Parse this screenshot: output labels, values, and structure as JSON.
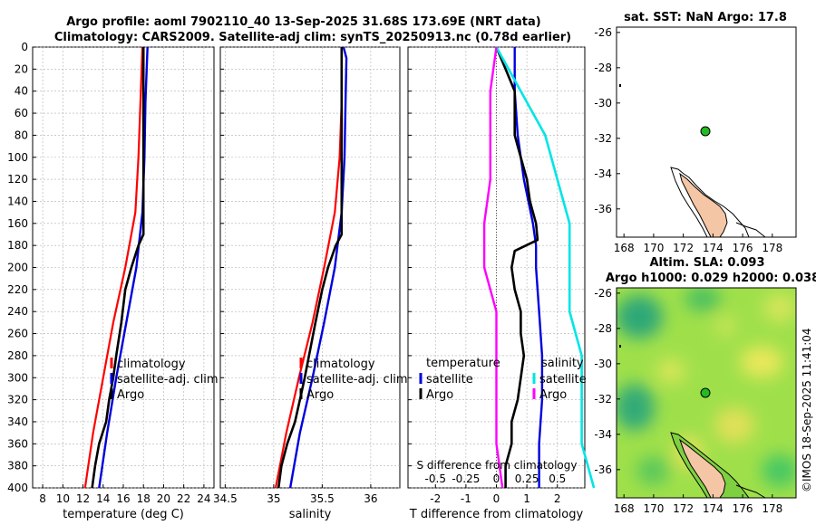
{
  "figure": {
    "title_line1": "Argo profile: aoml 7902110_40 13-Sep-2025 31.68S 173.69E (NRT data)",
    "title_line2": "Climatology: CARS2009. Satellite-adj clim: synTS_20250913.nc (0.78d earlier)",
    "stamp": "©IMOS 18-Sep-2025 11:41:04"
  },
  "colors": {
    "climatology": "#ff0000",
    "satellite": "#0000dd",
    "argo": "#000000",
    "s_satellite": "#00e5e5",
    "s_argo": "#ff00ff",
    "land": "#f5c6a5",
    "float_marker": "#22bb22"
  },
  "chart_data": [
    {
      "id": "temperature",
      "type": "line",
      "xlabel": "temperature (deg C)",
      "ylabel": "",
      "xlim": [
        7,
        25
      ],
      "ylim": [
        400,
        0
      ],
      "xticks": [
        8,
        10,
        12,
        14,
        16,
        18,
        20,
        22,
        24
      ],
      "yticks": [
        0,
        20,
        40,
        60,
        80,
        100,
        120,
        140,
        160,
        180,
        200,
        220,
        240,
        260,
        280,
        300,
        320,
        340,
        360,
        380,
        400
      ],
      "grid": true,
      "legend": {
        "entries": [
          "climatology",
          "satellite-adj. clim",
          "Argo"
        ],
        "placement": "lower-center"
      },
      "series": [
        {
          "name": "climatology",
          "color_key": "climatology",
          "depth": [
            0,
            50,
            100,
            150,
            200,
            250,
            300,
            350,
            400
          ],
          "values": [
            17.9,
            17.7,
            17.5,
            17.2,
            16.2,
            15.0,
            14.0,
            13.0,
            12.2
          ]
        },
        {
          "name": "satellite-adj. clim",
          "color_key": "satellite",
          "depth": [
            0,
            50,
            100,
            150,
            200,
            250,
            300,
            350,
            400
          ],
          "values": [
            18.4,
            18.2,
            18.1,
            17.9,
            17.3,
            16.3,
            15.3,
            14.4,
            13.6
          ]
        },
        {
          "name": "Argo",
          "color_key": "argo",
          "depth": [
            0,
            50,
            100,
            150,
            170,
            180,
            200,
            220,
            250,
            280,
            300,
            320,
            340,
            360,
            380,
            400
          ],
          "values": [
            18.0,
            18.0,
            18.0,
            18.0,
            18.0,
            17.5,
            16.8,
            16.2,
            15.8,
            15.3,
            15.0,
            14.6,
            14.3,
            13.6,
            13.2,
            12.9
          ]
        }
      ]
    },
    {
      "id": "salinity",
      "type": "line",
      "xlabel": "salinity",
      "ylabel": "",
      "xlim": [
        34.45,
        36.3
      ],
      "ylim": [
        400,
        0
      ],
      "xticks": [
        34.5,
        35,
        35.5,
        36
      ],
      "grid": true,
      "legend": {
        "entries": [
          "climatology",
          "satellite-adj. clim",
          "Argo"
        ],
        "placement": "lower-center"
      },
      "series": [
        {
          "name": "climatology",
          "color_key": "climatology",
          "depth": [
            0,
            50,
            100,
            150,
            200,
            250,
            300,
            350,
            400
          ],
          "values": [
            35.7,
            35.7,
            35.68,
            35.63,
            35.52,
            35.4,
            35.26,
            35.13,
            35.02
          ]
        },
        {
          "name": "satellite-adj. clim",
          "color_key": "satellite",
          "depth": [
            0,
            10,
            50,
            100,
            150,
            200,
            250,
            300,
            350,
            400
          ],
          "values": [
            35.72,
            35.75,
            35.74,
            35.73,
            35.7,
            35.63,
            35.52,
            35.4,
            35.27,
            35.17
          ]
        },
        {
          "name": "Argo",
          "color_key": "argo",
          "depth": [
            0,
            50,
            100,
            150,
            170,
            180,
            200,
            220,
            250,
            300,
            320,
            340,
            360,
            380,
            400
          ],
          "values": [
            35.7,
            35.7,
            35.7,
            35.7,
            35.7,
            35.64,
            35.56,
            35.5,
            35.43,
            35.32,
            35.27,
            35.22,
            35.14,
            35.08,
            35.05
          ]
        }
      ]
    },
    {
      "id": "differences",
      "type": "line",
      "xlabel": "T difference from climatology",
      "xlabel_top": "S difference from climatology",
      "xlim": [
        -2.9,
        2.9
      ],
      "ylim": [
        400,
        0
      ],
      "xticks": [
        -2,
        -1,
        0,
        1,
        2
      ],
      "s_ticks": [
        -0.5,
        -0.25,
        0,
        0.25,
        0.5
      ],
      "s_tick_labels": [
        "-0.5",
        "-0.25",
        "0",
        "0.25",
        "0.5"
      ],
      "grid": true,
      "legend_left_title": "temperature",
      "legend_right_title": "salinity",
      "legend_left": [
        "satellite",
        "Argo"
      ],
      "legend_right": [
        "satellite",
        "Argo"
      ],
      "series": [
        {
          "name": "T satellite",
          "color_key": "satellite",
          "depth": [
            0,
            40,
            80,
            120,
            160,
            180,
            200,
            240,
            280,
            320,
            360,
            400
          ],
          "values": [
            0.6,
            0.6,
            0.7,
            0.9,
            1.2,
            1.3,
            1.3,
            1.4,
            1.5,
            1.5,
            1.4,
            1.4
          ]
        },
        {
          "name": "T Argo",
          "color_key": "argo",
          "depth": [
            0,
            20,
            40,
            60,
            80,
            100,
            120,
            140,
            160,
            175,
            185,
            200,
            220,
            240,
            260,
            280,
            300,
            320,
            340,
            360,
            380,
            400
          ],
          "values": [
            0.0,
            0.3,
            0.6,
            0.6,
            0.6,
            0.8,
            1.0,
            1.1,
            1.3,
            1.35,
            0.6,
            0.5,
            0.6,
            0.8,
            0.8,
            0.9,
            0.8,
            0.7,
            0.5,
            0.5,
            0.3,
            0.3
          ]
        },
        {
          "name": "S satellite",
          "color_key": "s_satellite",
          "depth": [
            0,
            40,
            80,
            120,
            160,
            200,
            240,
            280,
            320,
            360,
            400
          ],
          "values": [
            0.0,
            0.2,
            0.4,
            0.5,
            0.6,
            0.6,
            0.6,
            0.7,
            0.7,
            0.7,
            0.8
          ]
        },
        {
          "name": "S Argo",
          "color_key": "s_argo",
          "depth": [
            0,
            40,
            80,
            120,
            160,
            200,
            240,
            280,
            320,
            360,
            400
          ],
          "values": [
            0.0,
            -0.05,
            -0.05,
            -0.05,
            -0.1,
            -0.1,
            0.0,
            0.0,
            0.0,
            0.0,
            0.05
          ]
        }
      ]
    },
    {
      "id": "sst_map",
      "type": "heatmap",
      "title": "sat. SST: NaN Argo: 17.8",
      "xlim": [
        167.5,
        179.6
      ],
      "ylim": [
        -37.6,
        -25.7
      ],
      "xticks": [
        168,
        170,
        172,
        174,
        176,
        178
      ],
      "yticks": [
        -26,
        -28,
        -30,
        -32,
        -34,
        -36
      ],
      "float_position": [
        173.69,
        -31.68
      ]
    },
    {
      "id": "sla_map",
      "type": "heatmap",
      "title_line1": "Altim. SLA: 0.093",
      "title_line2": "Argo h1000: 0.029 h2000: 0.038",
      "xlim": [
        167.5,
        179.6
      ],
      "ylim": [
        -37.6,
        -25.7
      ],
      "xticks": [
        168,
        170,
        172,
        174,
        176,
        178
      ],
      "yticks": [
        -26,
        -28,
        -30,
        -32,
        -34,
        -36
      ],
      "float_position": [
        173.69,
        -31.68
      ]
    }
  ]
}
